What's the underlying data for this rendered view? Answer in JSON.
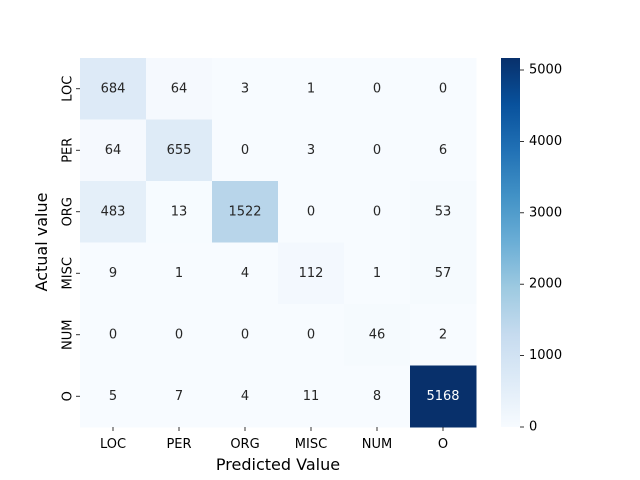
{
  "chart_data": {
    "type": "heatmap",
    "title": "",
    "xlabel": "Predicted Value",
    "ylabel": "Actual value",
    "x_categories": [
      "LOC",
      "PER",
      "ORG",
      "MISC",
      "NUM",
      "O"
    ],
    "y_categories": [
      "LOC",
      "PER",
      "ORG",
      "MISC",
      "NUM",
      "O"
    ],
    "values": [
      [
        684,
        64,
        3,
        1,
        0,
        0
      ],
      [
        64,
        655,
        0,
        3,
        0,
        6
      ],
      [
        483,
        13,
        1522,
        0,
        0,
        53
      ],
      [
        9,
        1,
        4,
        112,
        1,
        57
      ],
      [
        0,
        0,
        0,
        0,
        46,
        2
      ],
      [
        5,
        7,
        4,
        11,
        8,
        5168
      ]
    ],
    "colorbar": {
      "min": 0,
      "max": 5168,
      "ticks": [
        0,
        1000,
        2000,
        3000,
        4000,
        5000
      ],
      "colormap": "Blues"
    },
    "annotated": true,
    "grid": false
  }
}
